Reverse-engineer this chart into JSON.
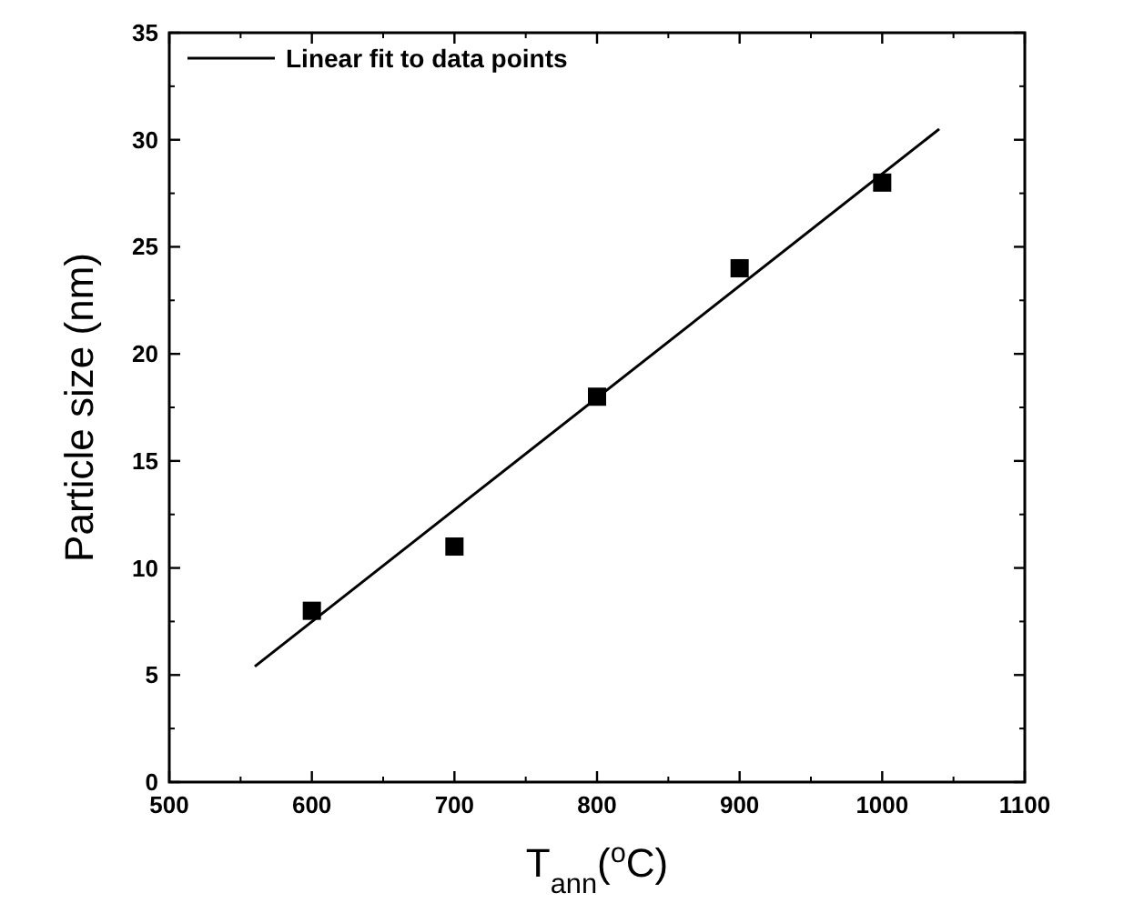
{
  "chart_data": {
    "type": "scatter",
    "xlabel": "T$_{ann}$($^{o}$C)",
    "ylabel": "Particle size (nm)",
    "xlim": [
      500,
      1100
    ],
    "xticks": [
      500,
      600,
      700,
      800,
      900,
      1000,
      1100
    ],
    "ylim": [
      0,
      35
    ],
    "yticks": [
      0,
      5,
      10,
      15,
      20,
      25,
      30,
      35
    ],
    "legend": "top left",
    "grid": false,
    "series": [
      {
        "color": "#000000",
        "marker": "square",
        "x": [
          600,
          700,
          800,
          900,
          1000
        ],
        "values": [
          8,
          11,
          18,
          24,
          28
        ]
      },
      {
        "type": "line",
        "name": "Linear fit to data points",
        "color": "#000000",
        "marker": "none",
        "line_style": "solid",
        "x": [
          560,
          1040
        ],
        "values": [
          5.4,
          30.5
        ]
      }
    ]
  }
}
